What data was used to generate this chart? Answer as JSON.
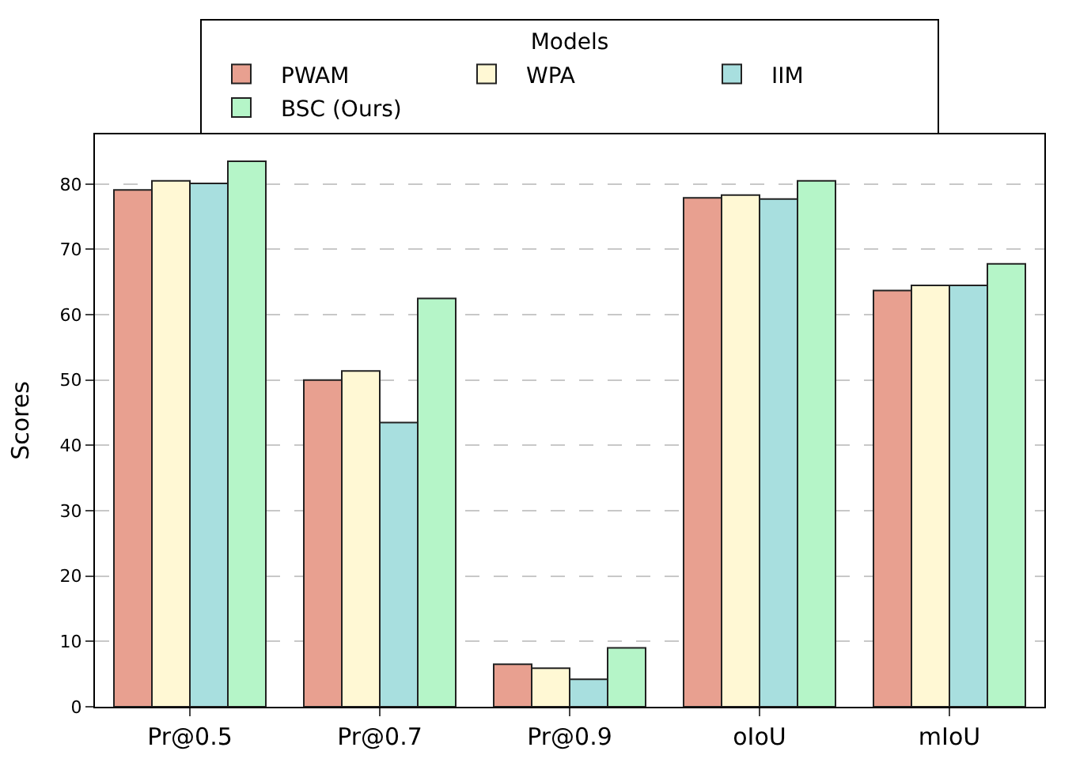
{
  "chart_data": {
    "type": "bar",
    "ylabel": "Scores",
    "legend_title": "Models",
    "legend": "top",
    "categories": [
      "Pr@0.5",
      "Pr@0.7",
      "Pr@0.9",
      "oIoU",
      "mIoU"
    ],
    "series": [
      {
        "name": "PWAM",
        "color": "#e8a090",
        "values": [
          79.1,
          50.0,
          6.5,
          77.9,
          63.7
        ]
      },
      {
        "name": "WPA",
        "color": "#fff8d4",
        "values": [
          80.5,
          51.4,
          5.9,
          78.3,
          64.5
        ]
      },
      {
        "name": "IIM",
        "color": "#a8dfdf",
        "values": [
          80.1,
          43.5,
          4.2,
          77.7,
          64.5
        ]
      },
      {
        "name": "BSC (Ours)",
        "color": "#b5f5c8",
        "values": [
          83.5,
          62.5,
          9.0,
          80.5,
          67.8
        ]
      }
    ],
    "ylim": [
      0,
      87.6
    ],
    "yticks": [
      0,
      10,
      20,
      30,
      40,
      50,
      60,
      70,
      80
    ],
    "grid": "y"
  }
}
